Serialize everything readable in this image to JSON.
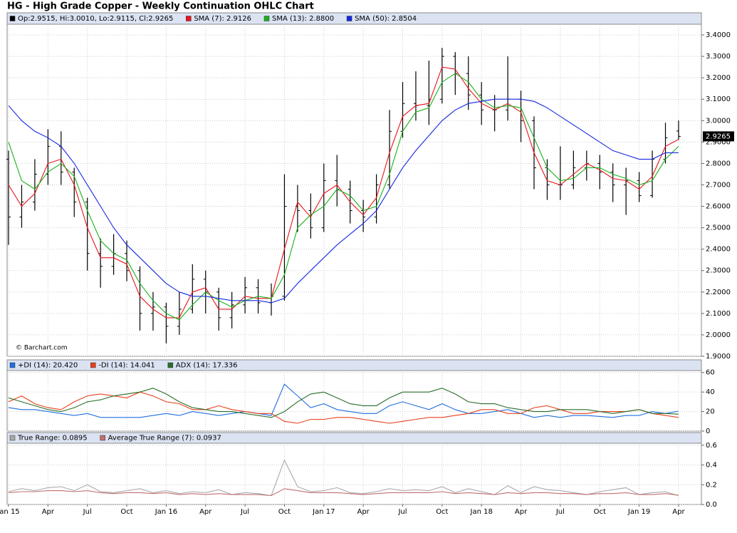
{
  "title": "HG - High Grade Copper - Weekly Continuation OHLC Chart",
  "chart_data": [
    {
      "type": "ohlc",
      "ohlc_label": "Op:2.9515, Hi:3.0010, Lo:2.9115, Cl:2.9265",
      "color": "#000000",
      "last_price_label": "2.9265",
      "copyright": "© Barchart.com",
      "categories": [
        "Jan 15",
        null,
        null,
        "Apr",
        null,
        null,
        "Jul",
        null,
        null,
        "Oct",
        null,
        null,
        "Jan 16",
        null,
        null,
        "Apr",
        null,
        null,
        "Jul",
        null,
        null,
        "Oct",
        null,
        null,
        "Jan 17",
        null,
        null,
        "Apr",
        null,
        null,
        "Jul",
        null,
        null,
        "Oct",
        null,
        null,
        "Jan 18",
        null,
        null,
        "Apr",
        null,
        null,
        "Jul",
        null,
        null,
        "Oct",
        null,
        null,
        "Jan 19",
        null,
        null,
        "Apr"
      ],
      "open": [
        2.82,
        2.55,
        2.62,
        2.75,
        2.88,
        2.76,
        2.62,
        2.38,
        2.32,
        2.38,
        2.3,
        2.1,
        2.13,
        2.04,
        2.12,
        2.26,
        2.2,
        2.08,
        2.14,
        2.22,
        2.15,
        2.18,
        2.6,
        2.58,
        2.5,
        2.72,
        2.68,
        2.58,
        2.55,
        2.7,
        2.95,
        3.08,
        3.07,
        3.1,
        3.3,
        3.22,
        3.12,
        3.05,
        3.05,
        3.1,
        3.0,
        2.78,
        2.7,
        2.7,
        2.78,
        2.8,
        2.76,
        2.7,
        2.72,
        2.65,
        2.82,
        2.9515
      ],
      "high": [
        2.86,
        2.7,
        2.82,
        2.96,
        2.95,
        2.78,
        2.64,
        2.45,
        2.47,
        2.44,
        2.32,
        2.2,
        2.15,
        2.2,
        2.33,
        2.3,
        2.22,
        2.2,
        2.27,
        2.26,
        2.24,
        2.75,
        2.7,
        2.66,
        2.8,
        2.84,
        2.72,
        2.63,
        2.75,
        3.05,
        3.18,
        3.23,
        3.28,
        3.34,
        3.32,
        3.3,
        3.18,
        3.12,
        3.3,
        3.14,
        3.02,
        2.82,
        2.88,
        2.86,
        2.86,
        2.84,
        2.8,
        2.78,
        2.76,
        2.86,
        2.99,
        3.001
      ],
      "low": [
        2.42,
        2.5,
        2.58,
        2.7,
        2.7,
        2.55,
        2.3,
        2.22,
        2.28,
        2.25,
        2.02,
        2.02,
        1.96,
        2.0,
        2.1,
        2.1,
        2.02,
        2.03,
        2.1,
        2.1,
        2.09,
        2.16,
        2.48,
        2.45,
        2.48,
        2.6,
        2.52,
        2.48,
        2.52,
        2.68,
        2.92,
        3.0,
        2.98,
        3.08,
        3.12,
        3.05,
        2.98,
        2.95,
        3.0,
        2.9,
        2.68,
        2.63,
        2.63,
        2.68,
        2.72,
        2.68,
        2.62,
        2.56,
        2.62,
        2.64,
        2.8,
        2.9115
      ],
      "close": [
        2.55,
        2.62,
        2.75,
        2.88,
        2.76,
        2.62,
        2.38,
        2.32,
        2.38,
        2.3,
        2.1,
        2.13,
        2.04,
        2.12,
        2.26,
        2.2,
        2.08,
        2.14,
        2.22,
        2.15,
        2.18,
        2.6,
        2.58,
        2.5,
        2.72,
        2.68,
        2.58,
        2.55,
        2.7,
        2.95,
        3.08,
        3.07,
        3.1,
        3.3,
        3.22,
        3.12,
        3.05,
        3.05,
        3.1,
        3.0,
        2.78,
        2.7,
        2.7,
        2.78,
        2.8,
        2.76,
        2.7,
        2.72,
        2.65,
        2.82,
        2.92,
        2.9265
      ],
      "series": [
        {
          "name": "SMA (7): 2.9126",
          "color": "#e8141c",
          "values": [
            2.7,
            2.6,
            2.66,
            2.8,
            2.82,
            2.7,
            2.5,
            2.36,
            2.36,
            2.33,
            2.18,
            2.12,
            2.08,
            2.08,
            2.2,
            2.22,
            2.12,
            2.12,
            2.18,
            2.17,
            2.17,
            2.4,
            2.62,
            2.55,
            2.66,
            2.7,
            2.62,
            2.56,
            2.64,
            2.85,
            3.02,
            3.07,
            3.08,
            3.25,
            3.24,
            3.15,
            3.08,
            3.05,
            3.08,
            3.04,
            2.85,
            2.72,
            2.7,
            2.75,
            2.8,
            2.77,
            2.73,
            2.72,
            2.68,
            2.74,
            2.88,
            2.9126
          ]
        },
        {
          "name": "SMA (13): 2.8800",
          "color": "#19b219",
          "values": [
            2.9,
            2.72,
            2.68,
            2.76,
            2.8,
            2.74,
            2.58,
            2.44,
            2.38,
            2.35,
            2.24,
            2.16,
            2.1,
            2.07,
            2.14,
            2.2,
            2.16,
            2.13,
            2.16,
            2.18,
            2.17,
            2.28,
            2.5,
            2.56,
            2.6,
            2.68,
            2.65,
            2.58,
            2.6,
            2.75,
            2.95,
            3.04,
            3.06,
            3.18,
            3.22,
            3.18,
            3.1,
            3.06,
            3.07,
            3.06,
            2.92,
            2.78,
            2.72,
            2.73,
            2.78,
            2.78,
            2.75,
            2.73,
            2.7,
            2.72,
            2.82,
            2.88
          ]
        },
        {
          "name": "SMA (50): 2.8504",
          "color": "#1428e0",
          "values": [
            3.07,
            3.0,
            2.95,
            2.92,
            2.88,
            2.8,
            2.7,
            2.6,
            2.5,
            2.42,
            2.36,
            2.3,
            2.24,
            2.2,
            2.18,
            2.18,
            2.17,
            2.16,
            2.16,
            2.16,
            2.15,
            2.17,
            2.24,
            2.3,
            2.36,
            2.42,
            2.47,
            2.52,
            2.58,
            2.68,
            2.78,
            2.86,
            2.93,
            3.0,
            3.05,
            3.08,
            3.09,
            3.1,
            3.1,
            3.1,
            3.09,
            3.06,
            3.02,
            2.98,
            2.94,
            2.9,
            2.86,
            2.84,
            2.82,
            2.82,
            2.85,
            2.8504
          ]
        }
      ],
      "ylim": [
        1.9,
        3.45
      ],
      "yticks": [
        {
          "value": 1.9,
          "label": "1.9000"
        },
        {
          "value": 2.0,
          "label": "2.0000"
        },
        {
          "value": 2.1,
          "label": "2.1000"
        },
        {
          "value": 2.2,
          "label": "2.2000"
        },
        {
          "value": 2.3,
          "label": "2.3000"
        },
        {
          "value": 2.4,
          "label": "2.4000"
        },
        {
          "value": 2.5,
          "label": "2.5000"
        },
        {
          "value": 2.6,
          "label": "2.6000"
        },
        {
          "value": 2.7,
          "label": "2.7000"
        },
        {
          "value": 2.8,
          "label": "2.8000"
        },
        {
          "value": 2.9,
          "label": "2.9000"
        },
        {
          "value": 3.0,
          "label": "3.0000"
        },
        {
          "value": 3.1,
          "label": "3.1000"
        },
        {
          "value": 3.2,
          "label": "3.2000"
        },
        {
          "value": 3.3,
          "label": "3.3000"
        },
        {
          "value": 3.4,
          "label": "3.4000"
        }
      ],
      "grid": true
    },
    {
      "type": "line",
      "series": [
        {
          "name": "+DI (14): 20.420",
          "color": "#1f6fe0",
          "values": [
            24,
            22,
            22,
            20,
            18,
            16,
            18,
            14,
            14,
            14,
            14,
            16,
            18,
            16,
            20,
            18,
            16,
            18,
            20,
            18,
            16,
            48,
            36,
            24,
            28,
            22,
            20,
            18,
            18,
            26,
            30,
            26,
            22,
            28,
            22,
            18,
            18,
            20,
            22,
            18,
            14,
            16,
            14,
            16,
            16,
            15,
            14,
            16,
            16,
            20,
            18,
            20.42
          ]
        },
        {
          "name": "-DI (14): 14.041",
          "color": "#e8401c",
          "values": [
            30,
            36,
            28,
            24,
            22,
            30,
            36,
            38,
            36,
            34,
            40,
            36,
            30,
            28,
            22,
            22,
            26,
            22,
            20,
            18,
            18,
            10,
            8,
            12,
            12,
            14,
            14,
            12,
            10,
            8,
            10,
            12,
            14,
            14,
            16,
            18,
            22,
            22,
            18,
            18,
            24,
            26,
            22,
            18,
            18,
            20,
            20,
            20,
            22,
            18,
            16,
            14.041
          ]
        },
        {
          "name": "ADX (14): 17.336",
          "color": "#2a6e2a",
          "values": [
            34,
            30,
            26,
            22,
            20,
            24,
            30,
            32,
            36,
            38,
            40,
            44,
            38,
            30,
            24,
            22,
            20,
            20,
            18,
            16,
            14,
            20,
            30,
            38,
            40,
            34,
            28,
            26,
            26,
            34,
            40,
            40,
            40,
            44,
            38,
            30,
            28,
            28,
            24,
            22,
            20,
            20,
            22,
            22,
            22,
            20,
            18,
            20,
            22,
            18,
            18,
            17.336
          ]
        }
      ],
      "ylim": [
        0,
        62
      ],
      "yticks": [
        0,
        20,
        40,
        60
      ],
      "grid": true
    },
    {
      "type": "line",
      "series": [
        {
          "name": "True Range: 0.0895",
          "color": "#a8a8a8",
          "values": [
            0.13,
            0.16,
            0.14,
            0.17,
            0.18,
            0.14,
            0.2,
            0.13,
            0.12,
            0.14,
            0.16,
            0.12,
            0.14,
            0.11,
            0.13,
            0.12,
            0.15,
            0.1,
            0.12,
            0.11,
            0.09,
            0.45,
            0.18,
            0.13,
            0.14,
            0.17,
            0.12,
            0.11,
            0.13,
            0.16,
            0.14,
            0.15,
            0.14,
            0.18,
            0.12,
            0.16,
            0.13,
            0.1,
            0.19,
            0.12,
            0.18,
            0.15,
            0.14,
            0.12,
            0.1,
            0.13,
            0.15,
            0.17,
            0.1,
            0.12,
            0.13,
            0.0895
          ]
        },
        {
          "name": "Average True Range (7): 0.0937",
          "color": "#c07070",
          "values": [
            0.12,
            0.13,
            0.13,
            0.14,
            0.14,
            0.13,
            0.14,
            0.12,
            0.11,
            0.12,
            0.12,
            0.11,
            0.12,
            0.1,
            0.11,
            0.1,
            0.11,
            0.1,
            0.1,
            0.1,
            0.09,
            0.16,
            0.14,
            0.12,
            0.12,
            0.12,
            0.11,
            0.1,
            0.11,
            0.12,
            0.12,
            0.12,
            0.12,
            0.13,
            0.11,
            0.12,
            0.11,
            0.1,
            0.12,
            0.11,
            0.12,
            0.12,
            0.11,
            0.11,
            0.1,
            0.11,
            0.11,
            0.12,
            0.1,
            0.1,
            0.11,
            0.0937
          ]
        }
      ],
      "ylim": [
        0,
        0.62
      ],
      "yticks": [
        {
          "value": 0,
          "label": "0.0"
        },
        0.2,
        0.4,
        0.6
      ],
      "grid": true
    }
  ]
}
